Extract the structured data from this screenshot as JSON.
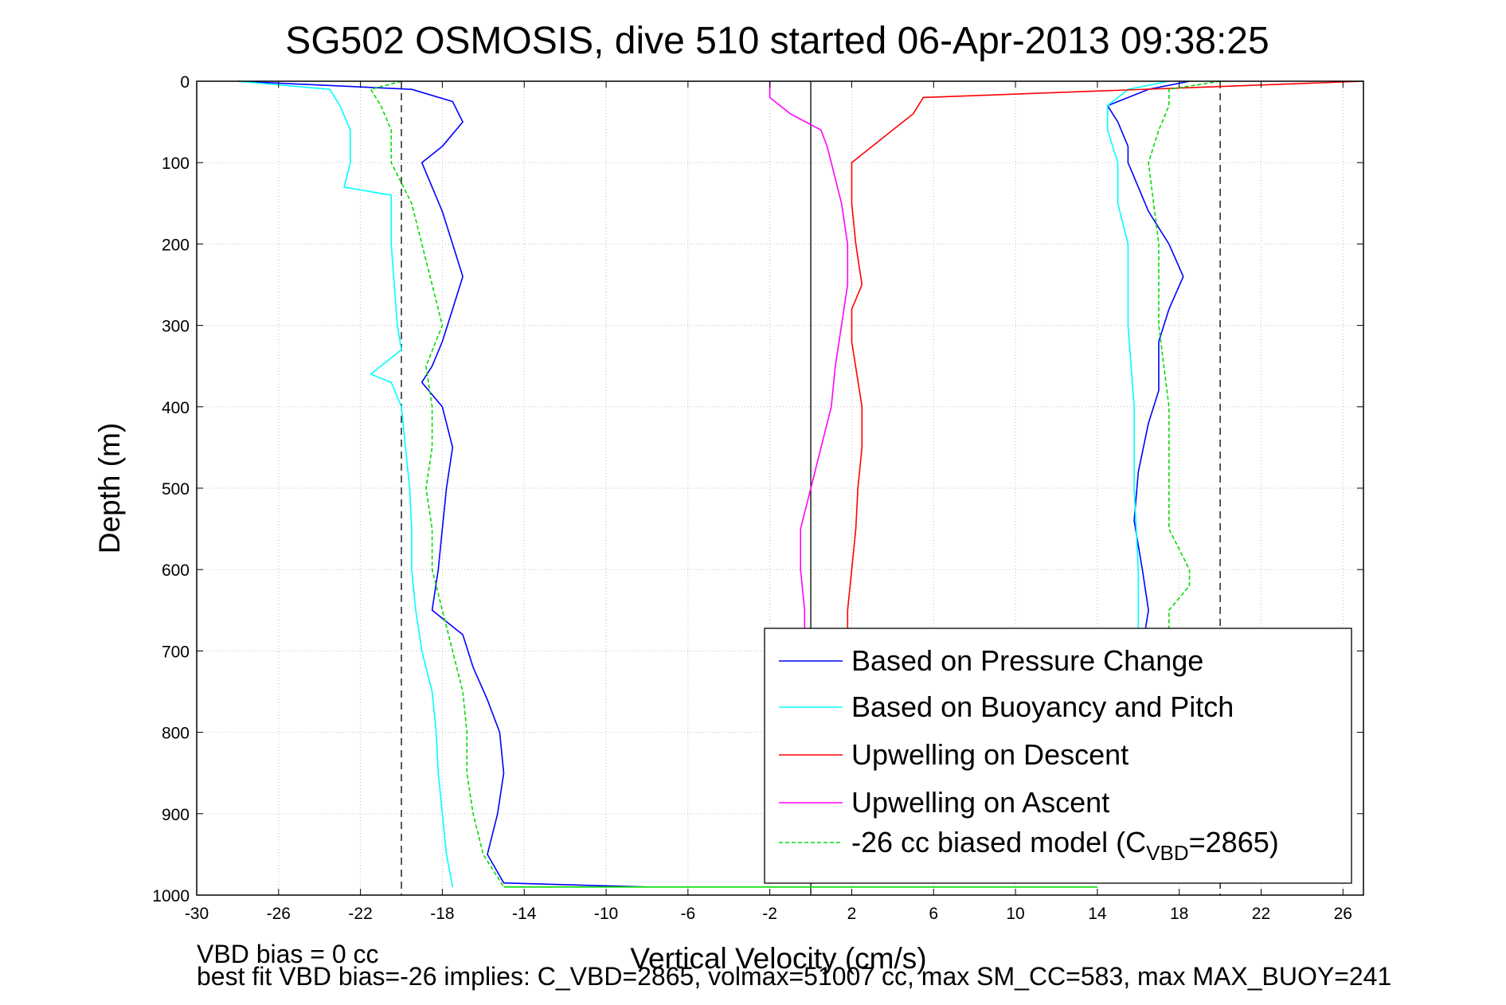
{
  "chart_data": {
    "type": "line",
    "title": "SG502 OSMOSIS, dive 510 started 06-Apr-2013 09:38:25",
    "xlabel": "Vertical Velocity (cm/s)",
    "ylabel": "Depth (m)",
    "xlim": [
      -30,
      27
    ],
    "ylim": [
      1000,
      0
    ],
    "y_reversed": true,
    "grid": true,
    "legend_placement": "bottom-right",
    "x_ticks": [
      -30,
      -26,
      -22,
      -18,
      -14,
      -10,
      -6,
      -2,
      2,
      6,
      10,
      14,
      18,
      22,
      26
    ],
    "y_ticks": [
      0,
      100,
      200,
      300,
      400,
      500,
      600,
      700,
      800,
      900,
      1000
    ],
    "reference_lines": [
      {
        "x": -20,
        "style": "dashed",
        "color": "#000000"
      },
      {
        "x": 0,
        "style": "solid",
        "color": "#000000"
      },
      {
        "x": 20,
        "style": "dashed",
        "color": "#000000"
      }
    ],
    "series": [
      {
        "name": "Based on Pressure Change",
        "color": "#0000ff",
        "style": "solid",
        "branches": [
          {
            "depth": [
              0,
              10,
              25,
              50,
              80,
              100,
              130,
              160,
              200,
              240,
              280,
              320,
              350,
              370,
              400,
              450,
              500,
              550,
              600,
              650,
              680,
              720,
              760,
              800,
              850,
              900,
              950,
              985,
              990
            ],
            "velocity": [
              -28,
              -19.5,
              -17.5,
              -17,
              -18,
              -19,
              -18.5,
              -18,
              -17.5,
              -17,
              -17.5,
              -18,
              -18.5,
              -19,
              -18,
              -17.5,
              -17.8,
              -18,
              -18.2,
              -18.5,
              -17,
              -16.5,
              -15.8,
              -15.2,
              -15,
              -15.3,
              -15.8,
              -15,
              -8
            ]
          },
          {
            "depth": [
              0,
              10,
              30,
              50,
              80,
              100,
              130,
              160,
              200,
              240,
              280,
              320,
              380,
              420,
              480,
              540,
              600,
              650,
              680
            ],
            "velocity": [
              18.5,
              16.5,
              14.5,
              15,
              15.5,
              15.5,
              16,
              16.5,
              17.5,
              18.2,
              17.5,
              17,
              17,
              16.5,
              16,
              15.8,
              16.2,
              16.5,
              16.3
            ]
          }
        ]
      },
      {
        "name": "Based on Buoyancy and Pitch",
        "color": "#00ffff",
        "style": "solid",
        "branches": [
          {
            "depth": [
              0,
              10,
              30,
              60,
              100,
              130,
              140,
              160,
              200,
              300,
              330,
              360,
              370,
              400,
              450,
              500,
              550,
              600,
              650,
              700,
              750,
              800,
              850,
              900,
              950,
              990
            ],
            "velocity": [
              -28,
              -23.5,
              -23,
              -22.5,
              -22.5,
              -22.8,
              -20.5,
              -20.5,
              -20.5,
              -20.2,
              -20,
              -21.5,
              -20.5,
              -20,
              -19.8,
              -19.6,
              -19.5,
              -19.5,
              -19.3,
              -19,
              -18.5,
              -18.3,
              -18.2,
              -18,
              -17.8,
              -17.5
            ]
          },
          {
            "depth": [
              0,
              10,
              30,
              60,
              100,
              150,
              200,
              300,
              400,
              500,
              600,
              680
            ],
            "velocity": [
              17.5,
              15.5,
              14.5,
              14.5,
              15,
              15,
              15.5,
              15.5,
              15.8,
              15.8,
              16,
              16
            ]
          }
        ]
      },
      {
        "name": "Upwelling on Descent",
        "color": "#ff0000",
        "style": "solid",
        "branches": [
          {
            "depth": [
              0,
              20,
              40,
              60,
              80,
              100,
              150,
              200,
              250,
              280,
              320,
              400,
              450,
              500,
              550,
              600,
              650,
              680
            ],
            "velocity": [
              27,
              5.5,
              5,
              4,
              3,
              2,
              2,
              2.2,
              2.5,
              2,
              2,
              2.5,
              2.5,
              2.3,
              2.2,
              2,
              1.8,
              1.8
            ]
          }
        ]
      },
      {
        "name": "Upwelling on Ascent",
        "color": "#ff00ff",
        "style": "solid",
        "branches": [
          {
            "depth": [
              0,
              20,
              40,
              60,
              80,
              100,
              150,
              200,
              250,
              300,
              350,
              400,
              450,
              500,
              550,
              600,
              650,
              680
            ],
            "velocity": [
              -2,
              -2,
              -1,
              0.5,
              0.8,
              1,
              1.5,
              1.8,
              1.8,
              1.5,
              1.2,
              1,
              0.5,
              0,
              -0.5,
              -0.5,
              -0.3,
              -0.3
            ]
          }
        ]
      },
      {
        "name": "-26 cc biased model (C<sub>VBD</sub>=2865)",
        "color": "#00dd00",
        "style": "dashed",
        "branches": [
          {
            "depth": [
              0,
              10,
              30,
              60,
              100,
              150,
              200,
              250,
              300,
              350,
              400,
              450,
              500,
              550,
              600,
              650,
              700,
              750,
              800,
              850,
              900,
              950,
              990
            ],
            "velocity": [
              -20,
              -21.5,
              -21,
              -20.5,
              -20.5,
              -19.5,
              -19,
              -18.5,
              -18,
              -18.8,
              -18.5,
              -18.5,
              -18.8,
              -18.5,
              -18.5,
              -18,
              -17.5,
              -17,
              -16.8,
              -16.8,
              -16.5,
              -16,
              -15
            ]
          },
          {
            "depth": [
              0,
              10,
              30,
              60,
              100,
              200,
              300,
              400,
              500,
              550,
              600,
              620,
              650,
              680
            ],
            "velocity": [
              20,
              17.5,
              17.5,
              17,
              16.5,
              17,
              17,
              17.5,
              17.5,
              17.5,
              18.5,
              18.5,
              17.5,
              17.5
            ]
          }
        ]
      }
    ],
    "transition_line": {
      "depth": 990,
      "velocity": [
        -15,
        14
      ],
      "color": "#00dd00"
    }
  },
  "footer": {
    "line1": "VBD bias = 0 cc",
    "line2": "best fit VBD bias=-26 implies: C_VBD=2865, volmax=51007 cc, max SM_CC=583, max MAX_BUOY=241"
  }
}
